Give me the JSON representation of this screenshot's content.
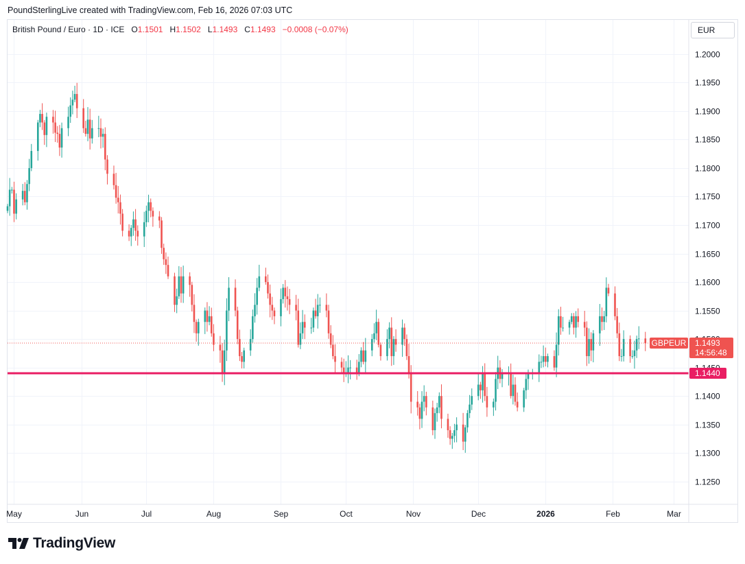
{
  "header": {
    "attribution": "PoundSterlingLive created with TradingView.com, Feb 16, 2026 07:03 UTC"
  },
  "legend": {
    "instrument": "British Pound / Euro · 1D · ICE",
    "o_label": "O",
    "o_value": "1.1501",
    "h_label": "H",
    "h_value": "1.1502",
    "l_label": "L",
    "l_value": "1.1493",
    "c_label": "C",
    "c_value": "1.1493",
    "change": "−0.0008 (−0.07%)"
  },
  "currency_button": "EUR",
  "footer": {
    "logo_text": "TradingView"
  },
  "colors": {
    "up": "#26a69a",
    "down": "#ef5350",
    "support": "#e91e63",
    "grid": "#f0f3fa",
    "axis_text": "#131722"
  },
  "chart_data": {
    "type": "candlestick",
    "grid": true,
    "ylim": [
      1.121,
      1.206
    ],
    "y_ticks": [
      "1.2000",
      "1.1950",
      "1.1900",
      "1.1850",
      "1.1800",
      "1.1750",
      "1.1700",
      "1.1650",
      "1.1600",
      "1.1550",
      "1.1500",
      "1.1450",
      "1.1400",
      "1.1350",
      "1.1300",
      "1.1250"
    ],
    "x_axis": {
      "start_date": "2025-04-28",
      "end_date": "2026-03-08",
      "ticks": [
        {
          "label": "May",
          "date": "2025-05-01",
          "bold": false
        },
        {
          "label": "Jun",
          "date": "2025-06-01",
          "bold": false
        },
        {
          "label": "Jul",
          "date": "2025-07-01",
          "bold": false
        },
        {
          "label": "Aug",
          "date": "2025-08-01",
          "bold": false
        },
        {
          "label": "Sep",
          "date": "2025-09-01",
          "bold": false
        },
        {
          "label": "Oct",
          "date": "2025-10-01",
          "bold": false
        },
        {
          "label": "Nov",
          "date": "2025-11-01",
          "bold": false
        },
        {
          "label": "Dec",
          "date": "2025-12-01",
          "bold": false
        },
        {
          "label": "2026",
          "date": "2026-01-01",
          "bold": true
        },
        {
          "label": "Feb",
          "date": "2026-02-01",
          "bold": false
        },
        {
          "label": "Mar",
          "date": "2026-03-01",
          "bold": false
        }
      ]
    },
    "support_line": {
      "value": 1.144,
      "label": "1.1440"
    },
    "last_price": {
      "value": 1.1493,
      "symbol": "GBPEUR",
      "price_label": "1.1493",
      "countdown": "14:56:48"
    },
    "closes": [
      [
        "2025-04-28",
        1.1733
      ],
      [
        "2025-04-29",
        1.1762
      ],
      [
        "2025-04-30",
        1.1762
      ],
      [
        "2025-05-01",
        1.172
      ],
      [
        "2025-05-02",
        1.1745
      ],
      [
        "2025-05-05",
        1.176
      ],
      [
        "2025-05-06",
        1.174
      ],
      [
        "2025-05-07",
        1.1772
      ],
      [
        "2025-05-08",
        1.18
      ],
      [
        "2025-05-09",
        1.183
      ],
      [
        "2025-05-12",
        1.188
      ],
      [
        "2025-05-13",
        1.1895
      ],
      [
        "2025-05-14",
        1.188
      ],
      [
        "2025-05-15",
        1.1858
      ],
      [
        "2025-05-16",
        1.189
      ],
      [
        "2025-05-19",
        1.188
      ],
      [
        "2025-05-20",
        1.1862
      ],
      [
        "2025-05-21",
        1.186
      ],
      [
        "2025-05-22",
        1.1836
      ],
      [
        "2025-05-23",
        1.187
      ],
      [
        "2025-05-26",
        1.189
      ],
      [
        "2025-05-27",
        1.191
      ],
      [
        "2025-05-28",
        1.192
      ],
      [
        "2025-05-29",
        1.193
      ],
      [
        "2025-05-30",
        1.1905
      ],
      [
        "2025-06-02",
        1.187
      ],
      [
        "2025-06-03",
        1.186
      ],
      [
        "2025-06-04",
        1.1885
      ],
      [
        "2025-06-05",
        1.1852
      ],
      [
        "2025-06-06",
        1.187
      ],
      [
        "2025-06-09",
        1.187
      ],
      [
        "2025-06-10",
        1.1855
      ],
      [
        "2025-06-11",
        1.186
      ],
      [
        "2025-06-12",
        1.1815
      ],
      [
        "2025-06-13",
        1.179
      ],
      [
        "2025-06-16",
        1.177
      ],
      [
        "2025-06-17",
        1.1748
      ],
      [
        "2025-06-18",
        1.174
      ],
      [
        "2025-06-19",
        1.172
      ],
      [
        "2025-06-20",
        1.169
      ],
      [
        "2025-06-23",
        1.168
      ],
      [
        "2025-06-24",
        1.1695
      ],
      [
        "2025-06-25",
        1.171
      ],
      [
        "2025-06-26",
        1.169
      ],
      [
        "2025-06-27",
        1.168
      ],
      [
        "2025-06-30",
        1.1705
      ],
      [
        "2025-07-01",
        1.1725
      ],
      [
        "2025-07-02",
        1.174
      ],
      [
        "2025-07-03",
        1.1725
      ],
      [
        "2025-07-04",
        1.1715
      ],
      [
        "2025-07-07",
        1.1708
      ],
      [
        "2025-07-08",
        1.166
      ],
      [
        "2025-07-09",
        1.164
      ],
      [
        "2025-07-10",
        1.163
      ],
      [
        "2025-07-11",
        1.161
      ],
      [
        "2025-07-14",
        1.156
      ],
      [
        "2025-07-15",
        1.1575
      ],
      [
        "2025-07-16",
        1.161
      ],
      [
        "2025-07-17",
        1.158
      ],
      [
        "2025-07-18",
        1.161
      ],
      [
        "2025-07-21",
        1.1595
      ],
      [
        "2025-07-22",
        1.156
      ],
      [
        "2025-07-23",
        1.153
      ],
      [
        "2025-07-24",
        1.151
      ],
      [
        "2025-07-25",
        1.153
      ],
      [
        "2025-07-28",
        1.155
      ],
      [
        "2025-07-29",
        1.153
      ],
      [
        "2025-07-30",
        1.154
      ],
      [
        "2025-07-31",
        1.151
      ],
      [
        "2025-08-01",
        1.149
      ],
      [
        "2025-08-04",
        1.148
      ],
      [
        "2025-08-05",
        1.144
      ],
      [
        "2025-08-06",
        1.148
      ],
      [
        "2025-08-07",
        1.155
      ],
      [
        "2025-08-08",
        1.159
      ],
      [
        "2025-08-11",
        1.155
      ],
      [
        "2025-08-12",
        1.15
      ],
      [
        "2025-08-13",
        1.147
      ],
      [
        "2025-08-14",
        1.146
      ],
      [
        "2025-08-15",
        1.148
      ],
      [
        "2025-08-18",
        1.15
      ],
      [
        "2025-08-19",
        1.154
      ],
      [
        "2025-08-20",
        1.156
      ],
      [
        "2025-08-21",
        1.159
      ],
      [
        "2025-08-22",
        1.161
      ],
      [
        "2025-08-25",
        1.16
      ],
      [
        "2025-08-26",
        1.158
      ],
      [
        "2025-08-27",
        1.156
      ],
      [
        "2025-08-28",
        1.155
      ],
      [
        "2025-08-29",
        1.154
      ],
      [
        "2025-09-01",
        1.157
      ],
      [
        "2025-09-02",
        1.159
      ],
      [
        "2025-09-03",
        1.1575
      ],
      [
        "2025-09-04",
        1.157
      ],
      [
        "2025-09-05",
        1.156
      ],
      [
        "2025-09-08",
        1.155
      ],
      [
        "2025-09-09",
        1.149
      ],
      [
        "2025-09-10",
        1.151
      ],
      [
        "2025-09-11",
        1.153
      ],
      [
        "2025-09-12",
        1.152
      ],
      [
        "2025-09-15",
        1.152
      ],
      [
        "2025-09-16",
        1.155
      ],
      [
        "2025-09-17",
        1.154
      ],
      [
        "2025-09-18",
        1.156
      ],
      [
        "2025-09-19",
        1.156
      ],
      [
        "2025-09-22",
        1.155
      ],
      [
        "2025-09-23",
        1.151
      ],
      [
        "2025-09-24",
        1.149
      ],
      [
        "2025-09-25",
        1.147
      ],
      [
        "2025-09-26",
        1.146
      ],
      [
        "2025-09-29",
        1.145
      ],
      [
        "2025-09-30",
        1.144
      ],
      [
        "2025-10-01",
        1.144
      ],
      [
        "2025-10-02",
        1.145
      ],
      [
        "2025-10-03",
        1.145
      ],
      [
        "2025-10-06",
        1.144
      ],
      [
        "2025-10-07",
        1.146
      ],
      [
        "2025-10-08",
        1.148
      ],
      [
        "2025-10-09",
        1.146
      ],
      [
        "2025-10-10",
        1.148
      ],
      [
        "2025-10-13",
        1.15
      ],
      [
        "2025-10-14",
        1.151
      ],
      [
        "2025-10-15",
        1.153
      ],
      [
        "2025-10-16",
        1.149
      ],
      [
        "2025-10-17",
        1.147
      ],
      [
        "2025-10-20",
        1.15
      ],
      [
        "2025-10-21",
        1.152
      ],
      [
        "2025-10-22",
        1.147
      ],
      [
        "2025-10-23",
        1.15
      ],
      [
        "2025-10-24",
        1.149
      ],
      [
        "2025-10-27",
        1.152
      ],
      [
        "2025-10-28",
        1.15
      ],
      [
        "2025-10-29",
        1.147
      ],
      [
        "2025-10-30",
        1.144
      ],
      [
        "2025-10-31",
        1.139
      ],
      [
        "2025-11-03",
        1.138
      ],
      [
        "2025-11-04",
        1.136
      ],
      [
        "2025-11-05",
        1.139
      ],
      [
        "2025-11-06",
        1.14
      ],
      [
        "2025-11-07",
        1.138
      ],
      [
        "2025-11-10",
        1.134
      ],
      [
        "2025-11-11",
        1.137
      ],
      [
        "2025-11-12",
        1.138
      ],
      [
        "2025-11-13",
        1.14
      ],
      [
        "2025-11-14",
        1.136
      ],
      [
        "2025-11-17",
        1.134
      ],
      [
        "2025-11-18",
        1.1325
      ],
      [
        "2025-11-19",
        1.133
      ],
      [
        "2025-11-20",
        1.134
      ],
      [
        "2025-11-21",
        1.135
      ],
      [
        "2025-11-24",
        1.132
      ],
      [
        "2025-11-25",
        1.1345
      ],
      [
        "2025-11-26",
        1.137
      ],
      [
        "2025-11-27",
        1.1385
      ],
      [
        "2025-11-28",
        1.14
      ],
      [
        "2025-12-01",
        1.142
      ],
      [
        "2025-12-02",
        1.141
      ],
      [
        "2025-12-03",
        1.144
      ],
      [
        "2025-12-04",
        1.14
      ],
      [
        "2025-12-05",
        1.138
      ],
      [
        "2025-12-08",
        1.139
      ],
      [
        "2025-12-09",
        1.143
      ],
      [
        "2025-12-10",
        1.145
      ],
      [
        "2025-12-11",
        1.143
      ],
      [
        "2025-12-12",
        1.144
      ],
      [
        "2025-12-15",
        1.144
      ],
      [
        "2025-12-16",
        1.14
      ],
      [
        "2025-12-17",
        1.142
      ],
      [
        "2025-12-18",
        1.139
      ],
      [
        "2025-12-19",
        1.138
      ],
      [
        "2025-12-22",
        1.141
      ],
      [
        "2025-12-23",
        1.143
      ],
      [
        "2025-12-24",
        1.144
      ],
      [
        "2025-12-26",
        1.144
      ],
      [
        "2025-12-29",
        1.146
      ],
      [
        "2025-12-30",
        1.146
      ],
      [
        "2025-12-31",
        1.147
      ],
      [
        "2026-01-01",
        1.146
      ],
      [
        "2026-01-02",
        1.147
      ],
      [
        "2026-01-05",
        1.145
      ],
      [
        "2026-01-06",
        1.149
      ],
      [
        "2026-01-07",
        1.154
      ],
      [
        "2026-01-08",
        1.152
      ],
      [
        "2026-01-09",
        1.152
      ],
      [
        "2026-01-12",
        1.153
      ],
      [
        "2026-01-13",
        1.154
      ],
      [
        "2026-01-14",
        1.152
      ],
      [
        "2026-01-15",
        1.154
      ],
      [
        "2026-01-16",
        1.153
      ],
      [
        "2026-01-19",
        1.152
      ],
      [
        "2026-01-20",
        1.147
      ],
      [
        "2026-01-21",
        1.15
      ],
      [
        "2026-01-22",
        1.148
      ],
      [
        "2026-01-23",
        1.151
      ],
      [
        "2026-01-26",
        1.154
      ],
      [
        "2026-01-27",
        1.153
      ],
      [
        "2026-01-28",
        1.154
      ],
      [
        "2026-01-29",
        1.159
      ],
      [
        "2026-01-30",
        1.158
      ],
      [
        "2026-02-02",
        1.154
      ],
      [
        "2026-02-03",
        1.151
      ],
      [
        "2026-02-04",
        1.147
      ],
      [
        "2026-02-05",
        1.147
      ],
      [
        "2026-02-06",
        1.15
      ],
      [
        "2026-02-09",
        1.147
      ],
      [
        "2026-02-10",
        1.147
      ],
      [
        "2026-02-11",
        1.148
      ],
      [
        "2026-02-12",
        1.15
      ],
      [
        "2026-02-13",
        1.1501
      ],
      [
        "2026-02-16",
        1.1493
      ]
    ]
  }
}
